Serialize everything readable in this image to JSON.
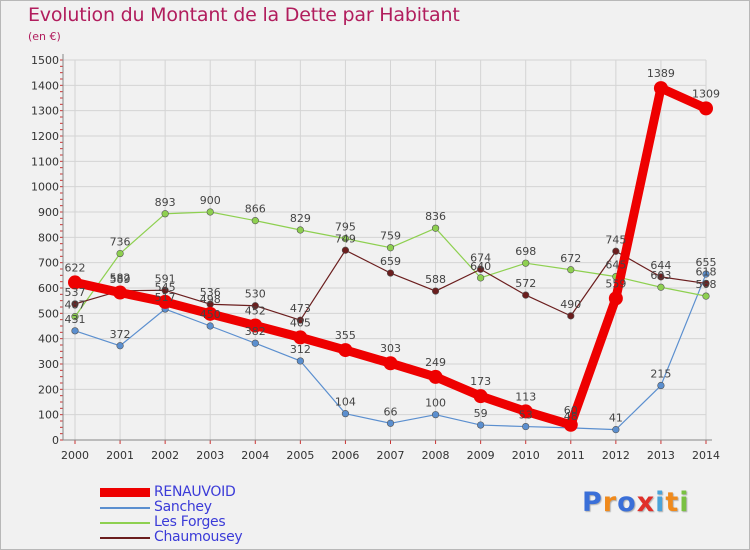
{
  "title": "Evolution du Montant de la Dette par Habitant",
  "unit_label": "(en €)",
  "logo": {
    "text": "Proxiti",
    "colors": [
      "#3a6fd8",
      "#f08a1c",
      "#3a6fd8",
      "#e0302a",
      "#4aa3d9",
      "#f08a1c",
      "#7ac142"
    ]
  },
  "chart_data": {
    "type": "line",
    "x": [
      "2000",
      "2001",
      "2002",
      "2003",
      "2004",
      "2005",
      "2006",
      "2007",
      "2008",
      "2009",
      "2010",
      "2011",
      "2012",
      "2013",
      "2014"
    ],
    "ylim": [
      0,
      1500
    ],
    "yticks": [
      0,
      100,
      200,
      300,
      400,
      500,
      600,
      700,
      800,
      900,
      1000,
      1100,
      1200,
      1300,
      1400,
      1500
    ],
    "grid": true,
    "legend_position": "bottom-left",
    "series": [
      {
        "name": "RENAUVOID",
        "color": "#ee0000",
        "values": [
          622,
          582,
          545,
          498,
          452,
          405,
          355,
          303,
          249,
          173,
          113,
          60,
          559,
          1389,
          1309
        ],
        "thick": true
      },
      {
        "name": "Sanchey",
        "color": "#5b8fcf",
        "values": [
          431,
          372,
          517,
          450,
          382,
          312,
          104,
          66,
          100,
          59,
          53,
          48,
          41,
          215,
          655
        ],
        "thick": false
      },
      {
        "name": "Les Forges",
        "color": "#8ed050",
        "values": [
          487,
          736,
          893,
          900,
          866,
          829,
          795,
          759,
          836,
          640,
          698,
          672,
          645,
          603,
          568
        ],
        "thick": false
      },
      {
        "name": "Chaumousey",
        "color": "#6b1e1e",
        "values": [
          537,
          589,
          591,
          536,
          530,
          473,
          749,
          659,
          588,
          674,
          572,
          490,
          745,
          644,
          618
        ],
        "thick": false
      }
    ],
    "data_labels": [
      {
        "series": 0,
        "labels": [
          "622",
          "582",
          "545",
          "498",
          "452",
          "405",
          "355",
          "303",
          "249",
          "173",
          "113",
          "60",
          "559",
          "1389",
          "1309"
        ]
      },
      {
        "series": 1,
        "labels": [
          "431",
          "372",
          "517",
          "450",
          "382",
          "312",
          "104",
          "66",
          "100",
          "59",
          "53",
          "48",
          "41",
          "215",
          "655"
        ]
      },
      {
        "series": 2,
        "labels": [
          "487",
          "736",
          "893",
          "900",
          "866",
          "829",
          "795",
          "759",
          "836",
          "640",
          "698",
          "672",
          "645",
          "603",
          "568"
        ]
      },
      {
        "series": 3,
        "labels": [
          "537",
          "589",
          "591",
          "536",
          "530",
          "473",
          "749",
          "659",
          "588",
          "674",
          "572",
          "490",
          "745",
          "644",
          "618"
        ]
      }
    ]
  }
}
